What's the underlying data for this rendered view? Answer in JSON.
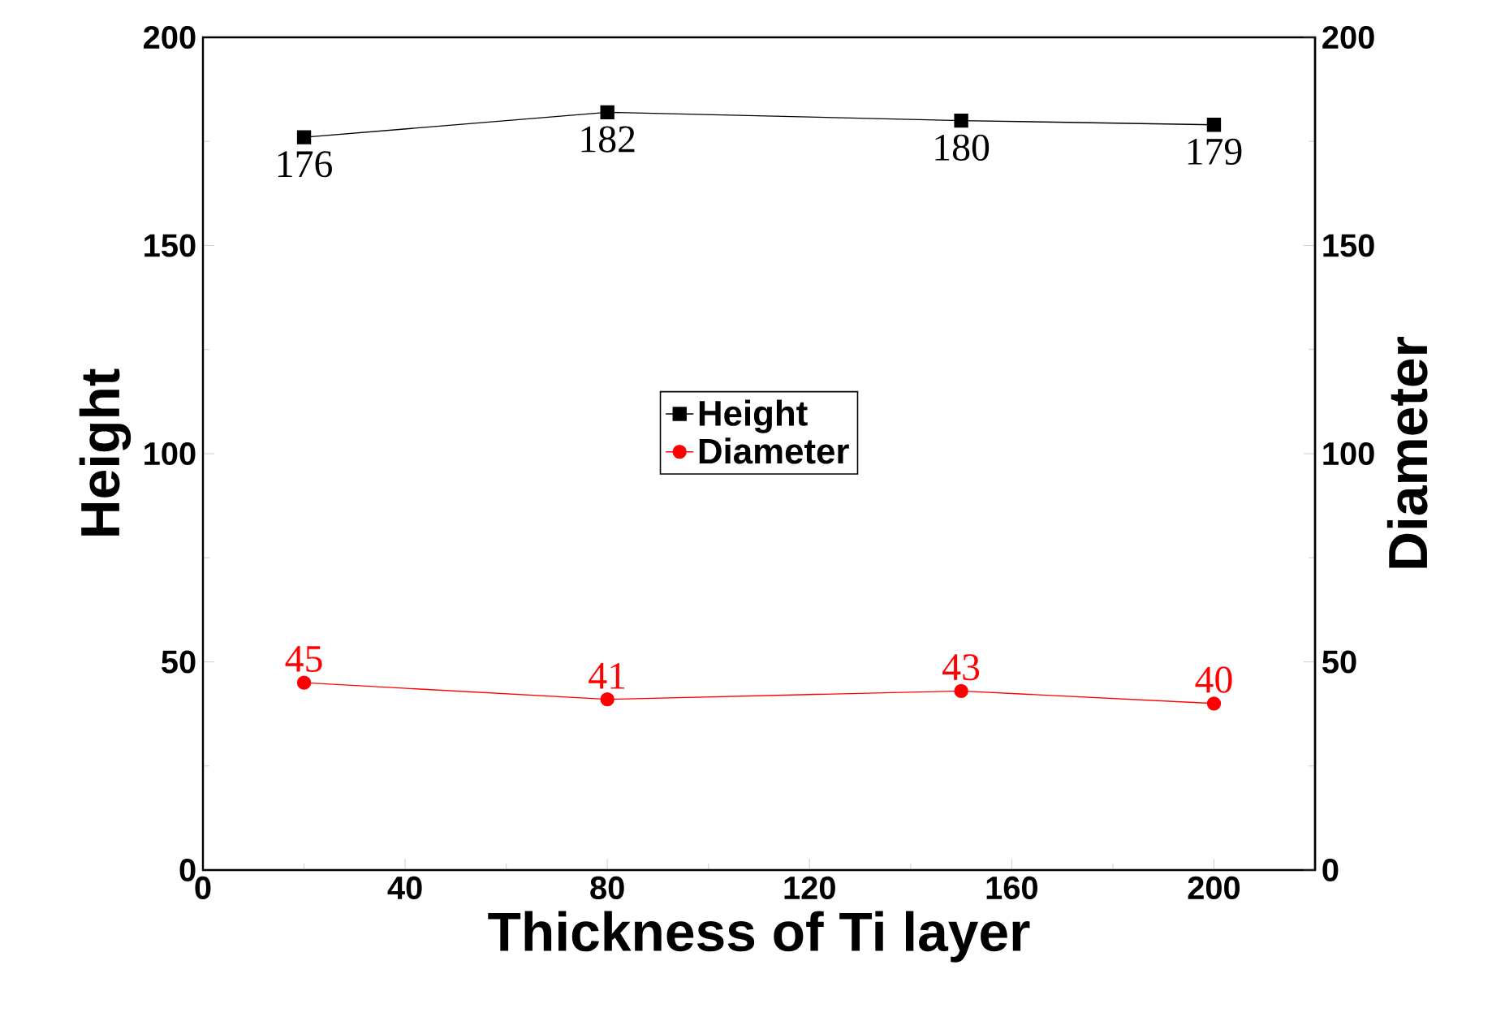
{
  "chart_data": {
    "type": "line",
    "xlabel": "Thickness of Ti layer",
    "ylabel": "Height",
    "y2label": "Diameter",
    "x": [
      20,
      80,
      150,
      200
    ],
    "series": [
      {
        "name": "Height",
        "color": "#000000",
        "marker": "square",
        "values": [
          176,
          182,
          180,
          179
        ]
      },
      {
        "name": "Diameter",
        "color": "#ff0000",
        "marker": "circle",
        "axis": "y2",
        "values": [
          45,
          41,
          43,
          40
        ]
      }
    ],
    "xlim": [
      0,
      220
    ],
    "xticks": [
      0,
      40,
      80,
      120,
      160,
      200
    ],
    "ylim": [
      0,
      200
    ],
    "yticks": [
      0,
      50,
      100,
      150,
      200
    ],
    "y2lim": [
      0,
      200
    ],
    "y2ticks": [
      0,
      50,
      100,
      150,
      200
    ],
    "data_labels": true,
    "legend": "center"
  }
}
